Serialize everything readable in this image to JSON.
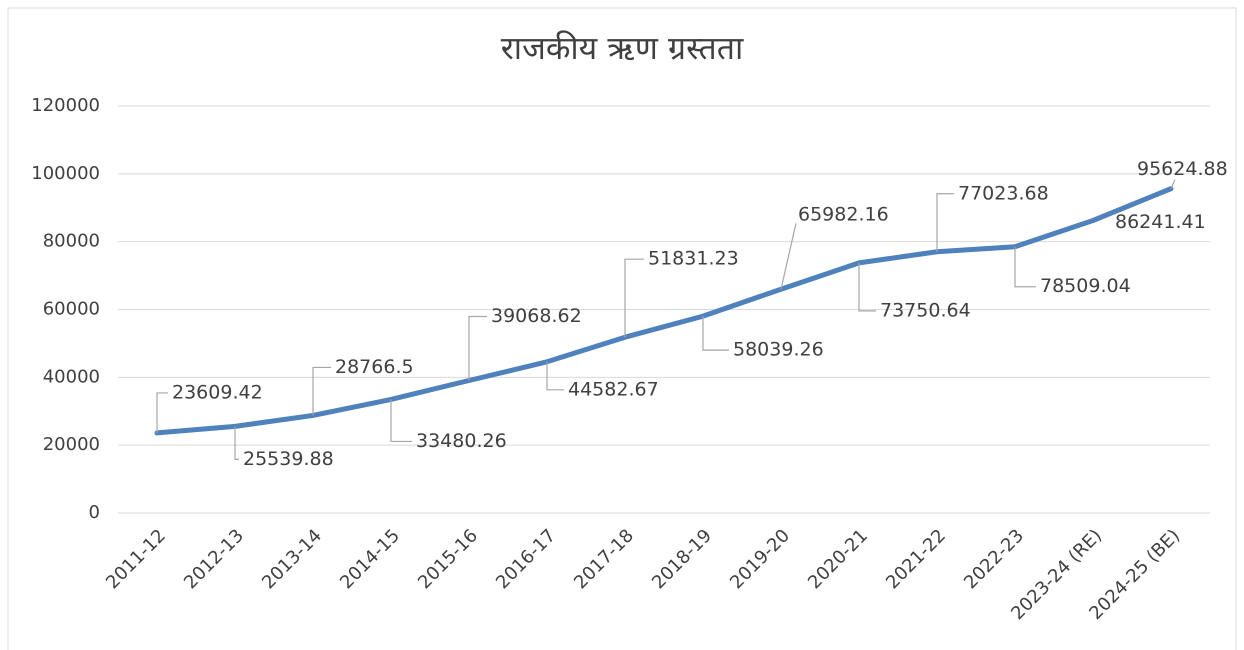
{
  "chart_data": {
    "type": "line",
    "title": "राजकीय ऋण ग्रस्तता",
    "categories": [
      "2011-12",
      "2012-13",
      "2013-14",
      "2014-15",
      "2015-16",
      "2016-17",
      "2017-18",
      "2018-19",
      "2019-20",
      "2020-21",
      "2021-22",
      "2022-23",
      "2023-24 (RE)",
      "2024-25 (BE)"
    ],
    "series": [
      {
        "name": "राजकीय ऋण ग्रस्तता",
        "color": "#4f81bd",
        "values": [
          23609.42,
          25539.88,
          28766.5,
          33480.26,
          39068.62,
          44582.67,
          51831.23,
          58039.26,
          65982.16,
          73750.64,
          77023.68,
          78509.04,
          86241.41,
          95624.88
        ]
      }
    ],
    "ylim": [
      0,
      120000
    ],
    "yticks": [
      0,
      20000,
      40000,
      60000,
      80000,
      100000,
      120000
    ],
    "grid": true
  }
}
